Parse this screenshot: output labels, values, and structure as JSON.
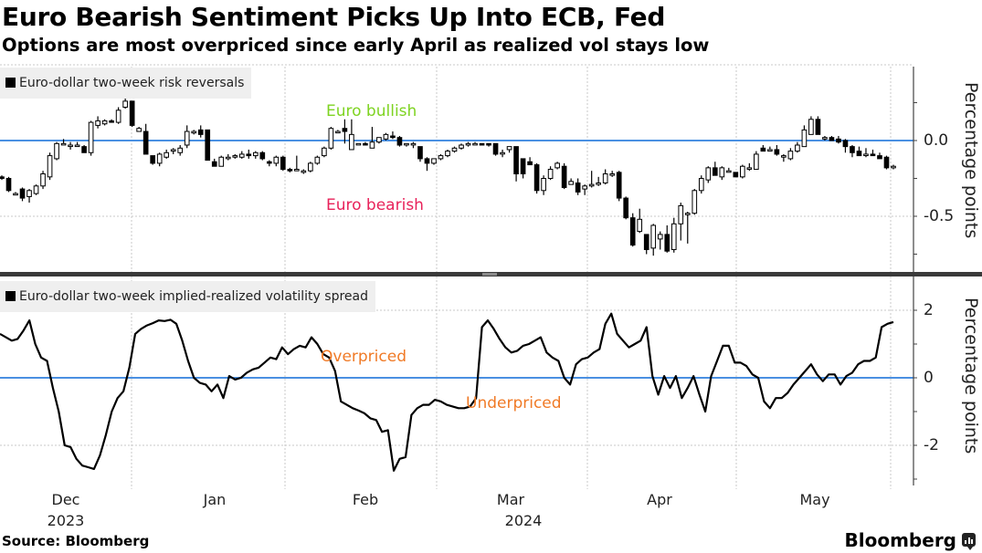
{
  "header": {
    "title": "Euro Bearish Sentiment Picks Up Into ECB, Fed",
    "subtitle": "Options are most overpriced since early April as realized vol stays low"
  },
  "footer": {
    "source": "Source: Bloomberg",
    "brand": "Bloomberg",
    "brand_icon": "bloomberg-chat-icon"
  },
  "colors": {
    "zero_line": "#4a90e2",
    "bullish": "#7ed321",
    "bearish": "#e8225a",
    "priced": "#f07a26",
    "candle": "#000000",
    "legend_bg": "#efefef"
  },
  "x_axis": {
    "months": [
      "Dec",
      "Jan",
      "Feb",
      "Mar",
      "Apr",
      "May"
    ],
    "years": [
      "2023",
      "2024"
    ]
  },
  "chart_data": [
    {
      "type": "candlestick",
      "legend": "Euro-dollar two-week risk reversals",
      "ylabel": "Percentage points",
      "ylim": [
        -0.88,
        0.48
      ],
      "yticks": [
        "0.0",
        "-0.5"
      ],
      "ytick_values": [
        0.0,
        -0.5
      ],
      "reference_line": 0.0,
      "annotations": [
        "Euro bullish",
        "Euro bearish"
      ],
      "x_range": [
        "2023-11-13",
        "2024-06-04"
      ],
      "candles": [
        {
          "o": -0.24,
          "c": -0.25,
          "h": -0.23,
          "l": -0.26
        },
        {
          "o": -0.25,
          "c": -0.33,
          "h": -0.24,
          "l": -0.34
        },
        {
          "o": -0.35,
          "c": -0.35,
          "h": -0.34,
          "l": -0.36
        },
        {
          "o": -0.32,
          "c": -0.38,
          "h": -0.31,
          "l": -0.4
        },
        {
          "o": -0.37,
          "c": -0.33,
          "h": -0.32,
          "l": -0.41
        },
        {
          "o": -0.35,
          "c": -0.3,
          "h": -0.29,
          "l": -0.36
        },
        {
          "o": -0.3,
          "c": -0.22,
          "h": -0.2,
          "l": -0.32
        },
        {
          "o": -0.24,
          "c": -0.1,
          "h": -0.08,
          "l": -0.26
        },
        {
          "o": -0.12,
          "c": -0.02,
          "h": -0.01,
          "l": -0.13
        },
        {
          "o": -0.02,
          "c": -0.02,
          "h": 0.01,
          "l": -0.03
        },
        {
          "o": -0.03,
          "c": -0.03,
          "h": -0.01,
          "l": -0.06
        },
        {
          "o": -0.03,
          "c": -0.03,
          "h": -0.01,
          "l": -0.04
        },
        {
          "o": -0.04,
          "c": -0.08,
          "h": -0.03,
          "l": -0.08
        },
        {
          "o": -0.08,
          "c": 0.12,
          "h": 0.13,
          "l": -0.1
        },
        {
          "o": 0.1,
          "c": 0.13,
          "h": 0.16,
          "l": 0.08
        },
        {
          "o": 0.11,
          "c": 0.13,
          "h": 0.14,
          "l": 0.1
        },
        {
          "o": 0.13,
          "c": 0.12,
          "h": 0.14,
          "l": 0.12
        },
        {
          "o": 0.12,
          "c": 0.2,
          "h": 0.22,
          "l": 0.11
        },
        {
          "o": 0.22,
          "c": 0.26,
          "h": 0.29,
          "l": 0.21
        },
        {
          "o": 0.26,
          "c": 0.1,
          "h": 0.26,
          "l": 0.09
        },
        {
          "o": 0.06,
          "c": 0.08,
          "h": 0.09,
          "l": 0.06
        },
        {
          "o": 0.06,
          "c": -0.09,
          "h": 0.11,
          "l": -0.09
        },
        {
          "o": -0.1,
          "c": -0.15,
          "h": -0.1,
          "l": -0.16
        },
        {
          "o": -0.15,
          "c": -0.09,
          "h": -0.08,
          "l": -0.17
        },
        {
          "o": -0.11,
          "c": -0.08,
          "h": -0.06,
          "l": -0.12
        },
        {
          "o": -0.07,
          "c": -0.06,
          "h": -0.05,
          "l": -0.09
        },
        {
          "o": -0.08,
          "c": -0.05,
          "h": -0.03,
          "l": -0.1
        },
        {
          "o": -0.03,
          "c": 0.06,
          "h": 0.1,
          "l": -0.05
        },
        {
          "o": 0.05,
          "c": 0.06,
          "h": 0.07,
          "l": 0.04
        },
        {
          "o": 0.07,
          "c": 0.04,
          "h": 0.1,
          "l": 0.02
        },
        {
          "o": 0.07,
          "c": -0.13,
          "h": 0.07,
          "l": -0.13
        },
        {
          "o": -0.14,
          "c": -0.17,
          "h": -0.12,
          "l": -0.17
        },
        {
          "o": -0.17,
          "c": -0.11,
          "h": -0.1,
          "l": -0.17
        },
        {
          "o": -0.11,
          "c": -0.11,
          "h": -0.09,
          "l": -0.13
        },
        {
          "o": -0.1,
          "c": -0.1,
          "h": -0.09,
          "l": -0.12
        },
        {
          "o": -0.11,
          "c": -0.09,
          "h": -0.07,
          "l": -0.12
        },
        {
          "o": -0.09,
          "c": -0.1,
          "h": -0.06,
          "l": -0.12
        },
        {
          "o": -0.1,
          "c": -0.08,
          "h": -0.07,
          "l": -0.12
        },
        {
          "o": -0.08,
          "c": -0.12,
          "h": -0.07,
          "l": -0.13
        },
        {
          "o": -0.14,
          "c": -0.15,
          "h": -0.13,
          "l": -0.17
        },
        {
          "o": -0.15,
          "c": -0.11,
          "h": -0.1,
          "l": -0.17
        },
        {
          "o": -0.11,
          "c": -0.19,
          "h": -0.1,
          "l": -0.2
        },
        {
          "o": -0.19,
          "c": -0.2,
          "h": -0.18,
          "l": -0.21
        },
        {
          "o": -0.19,
          "c": -0.19,
          "h": -0.1,
          "l": -0.2
        },
        {
          "o": -0.21,
          "c": -0.2,
          "h": -0.19,
          "l": -0.22
        },
        {
          "o": -0.2,
          "c": -0.15,
          "h": -0.14,
          "l": -0.21
        },
        {
          "o": -0.15,
          "c": -0.11,
          "h": -0.1,
          "l": -0.16
        },
        {
          "o": -0.1,
          "c": -0.05,
          "h": -0.04,
          "l": -0.11
        },
        {
          "o": -0.05,
          "c": 0.08,
          "h": 0.09,
          "l": -0.06
        },
        {
          "o": 0.06,
          "c": 0.06,
          "h": 0.07,
          "l": 0.05
        },
        {
          "o": 0.08,
          "c": 0.06,
          "h": 0.14,
          "l": -0.02
        },
        {
          "o": -0.06,
          "c": 0.04,
          "h": 0.14,
          "l": -0.06
        },
        {
          "o": -0.02,
          "c": -0.02,
          "h": -0.02,
          "l": -0.02
        },
        {
          "o": -0.02,
          "c": -0.03,
          "h": -0.01,
          "l": -0.03
        },
        {
          "o": -0.05,
          "c": -0.01,
          "h": 0.09,
          "l": -0.05
        },
        {
          "o": -0.01,
          "c": 0.02,
          "h": 0.02,
          "l": -0.02
        },
        {
          "o": 0.01,
          "c": 0.04,
          "h": 0.05,
          "l": 0.0
        },
        {
          "o": 0.03,
          "c": 0.02,
          "h": 0.06,
          "l": 0.01
        },
        {
          "o": 0.02,
          "c": -0.03,
          "h": 0.03,
          "l": -0.04
        },
        {
          "o": -0.02,
          "c": -0.02,
          "h": -0.02,
          "l": -0.04
        },
        {
          "o": -0.02,
          "c": -0.02,
          "h": -0.01,
          "l": -0.05
        },
        {
          "o": -0.04,
          "c": -0.12,
          "h": -0.04,
          "l": -0.14
        },
        {
          "o": -0.12,
          "c": -0.15,
          "h": -0.11,
          "l": -0.2
        },
        {
          "o": -0.15,
          "c": -0.12,
          "h": -0.12,
          "l": -0.16
        },
        {
          "o": -0.12,
          "c": -0.1,
          "h": -0.09,
          "l": -0.13
        },
        {
          "o": -0.1,
          "c": -0.07,
          "h": -0.06,
          "l": -0.11
        },
        {
          "o": -0.07,
          "c": -0.05,
          "h": -0.04,
          "l": -0.08
        },
        {
          "o": -0.05,
          "c": -0.03,
          "h": -0.02,
          "l": -0.06
        },
        {
          "o": -0.03,
          "c": -0.02,
          "h": -0.01,
          "l": -0.04
        },
        {
          "o": -0.02,
          "c": -0.02,
          "h": -0.01,
          "l": -0.03
        },
        {
          "o": -0.02,
          "c": -0.03,
          "h": -0.02,
          "l": -0.03
        },
        {
          "o": -0.02,
          "c": -0.03,
          "h": -0.02,
          "l": -0.04
        },
        {
          "o": -0.02,
          "c": -0.09,
          "h": -0.02,
          "l": -0.1
        },
        {
          "o": -0.08,
          "c": -0.08,
          "h": -0.06,
          "l": -0.11
        },
        {
          "o": -0.06,
          "c": -0.04,
          "h": -0.04,
          "l": -0.08
        },
        {
          "o": -0.04,
          "c": -0.22,
          "h": -0.04,
          "l": -0.27
        },
        {
          "o": -0.12,
          "c": -0.22,
          "h": -0.12,
          "l": -0.25
        },
        {
          "o": -0.14,
          "c": -0.16,
          "h": -0.11,
          "l": -0.16
        },
        {
          "o": -0.16,
          "c": -0.33,
          "h": -0.15,
          "l": -0.35
        },
        {
          "o": -0.33,
          "c": -0.25,
          "h": -0.23,
          "l": -0.36
        },
        {
          "o": -0.25,
          "c": -0.19,
          "h": -0.17,
          "l": -0.26
        },
        {
          "o": -0.18,
          "c": -0.15,
          "h": -0.14,
          "l": -0.19
        },
        {
          "o": -0.17,
          "c": -0.31,
          "h": -0.15,
          "l": -0.32
        },
        {
          "o": -0.29,
          "c": -0.27,
          "h": -0.25,
          "l": -0.29
        },
        {
          "o": -0.28,
          "c": -0.34,
          "h": -0.25,
          "l": -0.36
        },
        {
          "o": -0.32,
          "c": -0.3,
          "h": -0.29,
          "l": -0.36
        },
        {
          "o": -0.3,
          "c": -0.29,
          "h": -0.2,
          "l": -0.31
        },
        {
          "o": -0.29,
          "c": -0.28,
          "h": -0.24,
          "l": -0.3
        },
        {
          "o": -0.28,
          "c": -0.22,
          "h": -0.19,
          "l": -0.29
        },
        {
          "o": -0.22,
          "c": -0.22,
          "h": -0.2,
          "l": -0.24
        },
        {
          "o": -0.21,
          "c": -0.38,
          "h": -0.2,
          "l": -0.4
        },
        {
          "o": -0.38,
          "c": -0.51,
          "h": -0.37,
          "l": -0.52
        },
        {
          "o": -0.51,
          "c": -0.69,
          "h": -0.48,
          "l": -0.7
        },
        {
          "o": -0.6,
          "c": -0.52,
          "h": -0.45,
          "l": -0.61
        },
        {
          "o": -0.62,
          "c": -0.72,
          "h": -0.62,
          "l": -0.75
        },
        {
          "o": -0.71,
          "c": -0.56,
          "h": -0.55,
          "l": -0.76
        },
        {
          "o": -0.65,
          "c": -0.62,
          "h": -0.6,
          "l": -0.72
        },
        {
          "o": -0.62,
          "c": -0.73,
          "h": -0.56,
          "l": -0.74
        },
        {
          "o": -0.72,
          "c": -0.55,
          "h": -0.51,
          "l": -0.74
        },
        {
          "o": -0.55,
          "c": -0.43,
          "h": -0.41,
          "l": -0.66
        },
        {
          "o": -0.48,
          "c": -0.48,
          "h": -0.47,
          "l": -0.68
        },
        {
          "o": -0.48,
          "c": -0.33,
          "h": -0.32,
          "l": -0.49
        },
        {
          "o": -0.33,
          "c": -0.25,
          "h": -0.23,
          "l": -0.35
        },
        {
          "o": -0.26,
          "c": -0.18,
          "h": -0.17,
          "l": -0.28
        },
        {
          "o": -0.18,
          "c": -0.23,
          "h": -0.14,
          "l": -0.23
        },
        {
          "o": -0.24,
          "c": -0.18,
          "h": -0.17,
          "l": -0.26
        },
        {
          "o": -0.2,
          "c": -0.2,
          "h": -0.18,
          "l": -0.21
        },
        {
          "o": -0.21,
          "c": -0.24,
          "h": -0.21,
          "l": -0.24
        },
        {
          "o": -0.24,
          "c": -0.17,
          "h": -0.16,
          "l": -0.25
        },
        {
          "o": -0.18,
          "c": -0.18,
          "h": -0.15,
          "l": -0.2
        },
        {
          "o": -0.19,
          "c": -0.09,
          "h": -0.07,
          "l": -0.19
        },
        {
          "o": -0.05,
          "c": -0.07,
          "h": -0.03,
          "l": -0.07
        },
        {
          "o": -0.06,
          "c": -0.06,
          "h": -0.04,
          "l": -0.07
        },
        {
          "o": -0.06,
          "c": -0.09,
          "h": -0.03,
          "l": -0.1
        },
        {
          "o": -0.1,
          "c": -0.1,
          "h": -0.09,
          "l": -0.14
        },
        {
          "o": -0.12,
          "c": -0.07,
          "h": -0.05,
          "l": -0.13
        },
        {
          "o": -0.07,
          "c": -0.03,
          "h": -0.01,
          "l": -0.08
        },
        {
          "o": -0.04,
          "c": 0.07,
          "h": 0.1,
          "l": -0.04
        },
        {
          "o": 0.04,
          "c": 0.14,
          "h": 0.16,
          "l": 0.04
        },
        {
          "o": 0.14,
          "c": 0.04,
          "h": 0.16,
          "l": 0.04
        },
        {
          "o": 0.02,
          "c": 0.02,
          "h": 0.03,
          "l": 0.0
        },
        {
          "o": 0.02,
          "c": 0.0,
          "h": 0.03,
          "l": 0.0
        },
        {
          "o": 0.01,
          "c": -0.01,
          "h": 0.03,
          "l": -0.02
        },
        {
          "o": 0.0,
          "c": -0.04,
          "h": 0.01,
          "l": -0.08
        },
        {
          "o": -0.04,
          "c": -0.08,
          "h": -0.03,
          "l": -0.11
        },
        {
          "o": -0.07,
          "c": -0.1,
          "h": -0.04,
          "l": -0.1
        },
        {
          "o": -0.09,
          "c": -0.09,
          "h": -0.05,
          "l": -0.11
        },
        {
          "o": -0.09,
          "c": -0.1,
          "h": -0.06,
          "l": -0.1
        },
        {
          "o": -0.1,
          "c": -0.12,
          "h": -0.08,
          "l": -0.12
        },
        {
          "o": -0.11,
          "c": -0.18,
          "h": -0.1,
          "l": -0.19
        },
        {
          "o": -0.18,
          "c": -0.17,
          "h": -0.16,
          "l": -0.19
        }
      ]
    },
    {
      "type": "line",
      "legend": "Euro-dollar two-week implied-realized volatility spread",
      "ylabel": "Percentage points",
      "ylim": [
        -3.2,
        2.9
      ],
      "yticks": [
        "2",
        "0",
        "-2"
      ],
      "ytick_values": [
        2,
        0,
        -2
      ],
      "reference_line": 0,
      "annotations": [
        "Overpriced",
        "Underpriced"
      ],
      "values": [
        1.3,
        1.2,
        1.1,
        1.15,
        1.4,
        1.7,
        1.0,
        0.6,
        0.5,
        -0.3,
        -1.0,
        -2.0,
        -2.05,
        -2.4,
        -2.6,
        -2.65,
        -2.7,
        -2.3,
        -1.7,
        -1.0,
        -0.6,
        -0.4,
        0.3,
        1.3,
        1.45,
        1.55,
        1.62,
        1.7,
        1.68,
        1.72,
        1.6,
        1.1,
        0.5,
        0.0,
        -0.15,
        -0.2,
        -0.4,
        -0.2,
        -0.6,
        0.05,
        -0.05,
        0.0,
        0.15,
        0.25,
        0.3,
        0.45,
        0.6,
        0.55,
        0.9,
        0.7,
        0.85,
        0.95,
        0.9,
        1.2,
        1.0,
        0.7,
        0.6,
        0.2,
        -0.7,
        -0.8,
        -0.9,
        -0.97,
        -1.05,
        -1.2,
        -1.25,
        -1.6,
        -1.55,
        -2.75,
        -2.4,
        -2.35,
        -1.1,
        -0.9,
        -0.8,
        -0.8,
        -0.65,
        -0.7,
        -0.8,
        -0.85,
        -0.9,
        -0.9,
        -0.85,
        -0.6,
        1.5,
        1.7,
        1.45,
        1.15,
        0.9,
        0.75,
        0.8,
        0.95,
        1.0,
        1.1,
        1.2,
        0.75,
        0.6,
        0.5,
        0.0,
        -0.2,
        0.4,
        0.55,
        0.6,
        0.75,
        0.85,
        1.6,
        1.9,
        1.3,
        1.1,
        0.9,
        1.0,
        1.1,
        1.5,
        0.05,
        -0.5,
        0.05,
        -0.3,
        0.05,
        -0.6,
        -0.3,
        0.05,
        -0.5,
        -1.0,
        0.05,
        0.5,
        0.95,
        0.95,
        0.45,
        0.45,
        0.35,
        0.1,
        0.0,
        -0.7,
        -0.9,
        -0.6,
        -0.6,
        -0.45,
        -0.2,
        0.0,
        0.2,
        0.4,
        0.1,
        -0.1,
        0.1,
        0.1,
        -0.2,
        0.05,
        0.15,
        0.4,
        0.5,
        0.5,
        0.6,
        1.5,
        1.6,
        1.65
      ]
    }
  ]
}
